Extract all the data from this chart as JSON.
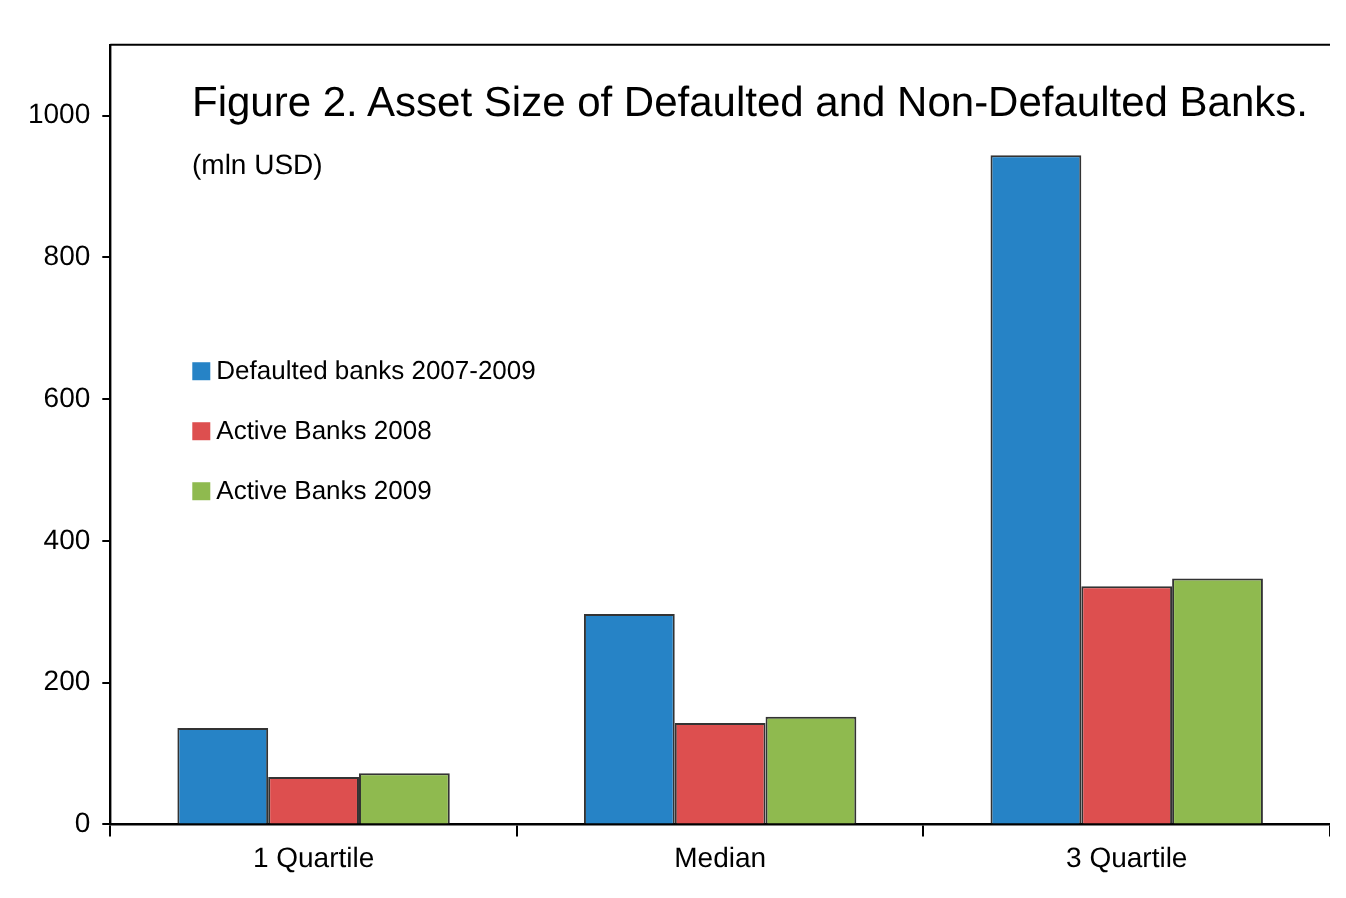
{
  "chart_data": {
    "type": "bar",
    "title": "Figure 2. Asset Size of Defaulted and Non-Defaulted Banks.",
    "subtitle": "(mln USD)",
    "categories": [
      "1 Quartile",
      "Median",
      "3 Quartile"
    ],
    "series": [
      {
        "name": "Defaulted banks 2007-2009",
        "color": "#2683c6",
        "values": [
          136,
          297,
          944
        ]
      },
      {
        "name": "Active Banks 2008",
        "color": "#dd4f4f",
        "values": [
          67,
          143,
          336
        ]
      },
      {
        "name": "Active Banks 2009",
        "color": "#8fba4f",
        "values": [
          72,
          152,
          347
        ]
      }
    ],
    "ylim": [
      0,
      1100
    ],
    "yticks": [
      0,
      200,
      400,
      600,
      800,
      1000
    ],
    "grid": false,
    "legend": "left"
  }
}
